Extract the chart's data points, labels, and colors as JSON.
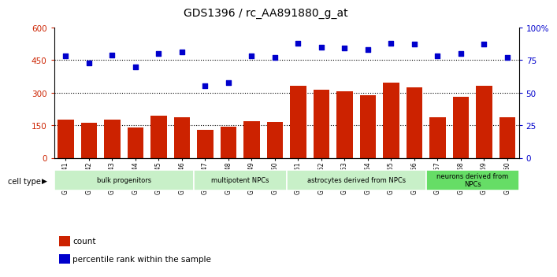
{
  "title": "GDS1396 / rc_AA891880_g_at",
  "samples": [
    "GSM47541",
    "GSM47542",
    "GSM47543",
    "GSM47544",
    "GSM47545",
    "GSM47546",
    "GSM47547",
    "GSM47548",
    "GSM47549",
    "GSM47550",
    "GSM47551",
    "GSM47552",
    "GSM47553",
    "GSM47554",
    "GSM47555",
    "GSM47556",
    "GSM47557",
    "GSM47558",
    "GSM47559",
    "GSM47560"
  ],
  "counts": [
    175,
    160,
    175,
    140,
    195,
    185,
    130,
    145,
    170,
    165,
    330,
    315,
    305,
    290,
    345,
    325,
    185,
    280,
    330,
    185
  ],
  "percentiles": [
    78,
    73,
    79,
    70,
    80,
    81,
    55,
    58,
    78,
    77,
    88,
    85,
    84,
    83,
    88,
    87,
    78,
    80,
    87,
    77
  ],
  "cell_types": [
    {
      "label": "bulk progenitors",
      "start": 0,
      "end": 6,
      "color": "#c8f0c8"
    },
    {
      "label": "multipotent NPCs",
      "start": 6,
      "end": 10,
      "color": "#c8f0c8"
    },
    {
      "label": "astrocytes derived from NPCs",
      "start": 10,
      "end": 16,
      "color": "#c8f0c8"
    },
    {
      "label": "neurons derived from\nNPCs",
      "start": 16,
      "end": 20,
      "color": "#66dd66"
    }
  ],
  "bar_color": "#cc2200",
  "dot_color": "#0000cc",
  "left_ylim": [
    0,
    600
  ],
  "right_ylim": [
    0,
    100
  ],
  "left_yticks": [
    0,
    150,
    300,
    450,
    600
  ],
  "right_yticks": [
    0,
    25,
    50,
    75,
    100
  ],
  "right_yticklabels": [
    "0",
    "25",
    "50",
    "75",
    "100%"
  ],
  "grid_values": [
    150,
    300,
    450
  ],
  "plot_bg_color": "#ffffff",
  "title_fontsize": 10,
  "bar_width": 0.7
}
